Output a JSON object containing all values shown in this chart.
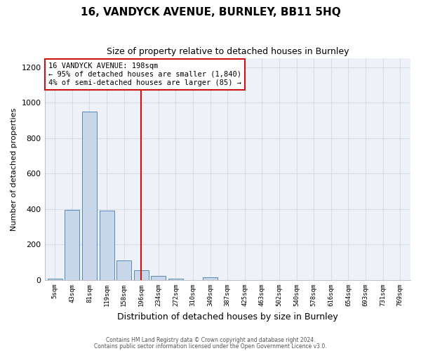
{
  "title": "16, VANDYCK AVENUE, BURNLEY, BB11 5HQ",
  "subtitle": "Size of property relative to detached houses in Burnley",
  "xlabel": "Distribution of detached houses by size in Burnley",
  "ylabel": "Number of detached properties",
  "bin_labels": [
    "5sqm",
    "43sqm",
    "81sqm",
    "119sqm",
    "158sqm",
    "196sqm",
    "234sqm",
    "272sqm",
    "310sqm",
    "349sqm",
    "387sqm",
    "425sqm",
    "463sqm",
    "502sqm",
    "540sqm",
    "578sqm",
    "616sqm",
    "654sqm",
    "693sqm",
    "731sqm",
    "769sqm"
  ],
  "bar_heights": [
    10,
    395,
    950,
    390,
    110,
    55,
    25,
    10,
    0,
    15,
    0,
    0,
    0,
    0,
    0,
    0,
    0,
    0,
    0,
    0,
    0
  ],
  "bar_color": "#c8d8ea",
  "bar_edge_color": "#5588bb",
  "vline_color": "#cc1111",
  "annotation_text": "16 VANDYCK AVENUE: 198sqm\n← 95% of detached houses are smaller (1,840)\n4% of semi-detached houses are larger (85) →",
  "annotation_box_color": "#ffffff",
  "annotation_box_edge": "#cc1111",
  "ylim": [
    0,
    1250
  ],
  "yticks": [
    0,
    200,
    400,
    600,
    800,
    1000,
    1200
  ],
  "footer_line1": "Contains HM Land Registry data © Crown copyright and database right 2024.",
  "footer_line2": "Contains public sector information licensed under the Open Government Licence v3.0.",
  "grid_color": "#d4dce8",
  "background_color": "#eef2f8",
  "fig_background": "#ffffff"
}
